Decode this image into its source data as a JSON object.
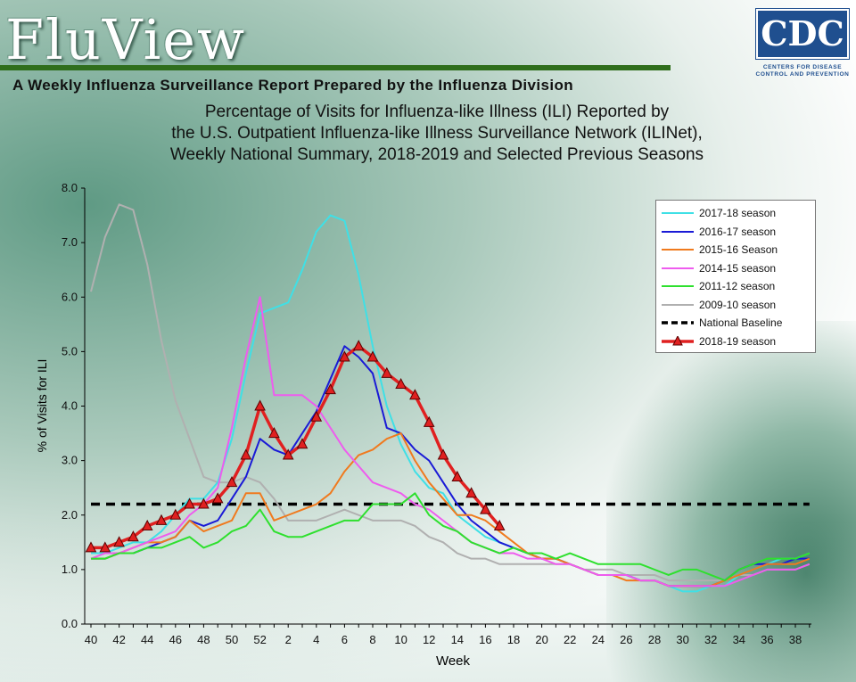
{
  "header": {
    "logo_text": "FluView",
    "subtitle": "A Weekly Influenza Surveillance Report Prepared by the Influenza Division",
    "cdc_text": "CDC",
    "cdc_subtext": "CENTERS FOR DISEASE CONTROL AND PREVENTION"
  },
  "colors": {
    "rule": "#2f6e1c",
    "cdc_blue": "#1f4f8f"
  },
  "chart_data": {
    "type": "line",
    "title_lines": [
      "Percentage of Visits for Influenza-like Illness (ILI) Reported by",
      "the U.S. Outpatient Influenza-like Illness Surveillance Network (ILINet),",
      "Weekly National Summary, 2018-2019 and Selected Previous Seasons"
    ],
    "xlabel": "Week",
    "ylabel": "% of Visits for ILI",
    "ylim": [
      0,
      8
    ],
    "yticks": [
      "0.0",
      "1.0",
      "2.0",
      "3.0",
      "4.0",
      "5.0",
      "6.0",
      "7.0",
      "8.0"
    ],
    "x_categories": [
      "40",
      "41",
      "42",
      "43",
      "44",
      "45",
      "46",
      "47",
      "48",
      "49",
      "50",
      "51",
      "52",
      "1",
      "2",
      "3",
      "4",
      "5",
      "6",
      "7",
      "8",
      "9",
      "10",
      "11",
      "12",
      "13",
      "14",
      "15",
      "16",
      "17",
      "18",
      "19",
      "20",
      "21",
      "22",
      "23",
      "24",
      "25",
      "26",
      "27",
      "28",
      "29",
      "30",
      "31",
      "32",
      "33",
      "34",
      "35",
      "36",
      "37",
      "38",
      "39"
    ],
    "x_tick_labels": [
      "40",
      "42",
      "44",
      "46",
      "48",
      "50",
      "52",
      "2",
      "4",
      "6",
      "8",
      "10",
      "12",
      "14",
      "16",
      "18",
      "20",
      "22",
      "24",
      "26",
      "28",
      "30",
      "32",
      "34",
      "36",
      "38"
    ],
    "baseline": {
      "name": "National Baseline",
      "value": 2.2,
      "color": "#000000"
    },
    "series": [
      {
        "name": "2017-18 season",
        "color": "#3fe0e6",
        "values": [
          1.3,
          1.3,
          1.4,
          1.5,
          1.5,
          1.7,
          2.0,
          2.3,
          2.3,
          2.6,
          3.4,
          4.6,
          5.7,
          5.8,
          5.9,
          6.5,
          7.2,
          7.5,
          7.4,
          6.4,
          5.1,
          4.0,
          3.3,
          2.8,
          2.5,
          2.4,
          2.0,
          1.8,
          1.6,
          1.5,
          1.4,
          1.3,
          1.2,
          1.2,
          1.1,
          1.0,
          0.9,
          0.9,
          0.9,
          0.8,
          0.8,
          0.7,
          0.6,
          0.6,
          0.7,
          0.7,
          0.9,
          1.0,
          1.1,
          1.2,
          1.2,
          1.3
        ]
      },
      {
        "name": "2016-17 season",
        "color": "#1a1ad6",
        "values": [
          1.2,
          1.2,
          1.3,
          1.3,
          1.4,
          1.5,
          1.6,
          1.9,
          1.8,
          1.9,
          2.3,
          2.7,
          3.4,
          3.2,
          3.1,
          3.5,
          3.9,
          4.5,
          5.1,
          4.9,
          4.6,
          3.6,
          3.5,
          3.2,
          3.0,
          2.6,
          2.2,
          1.9,
          1.7,
          1.5,
          1.4,
          1.3,
          1.2,
          1.2,
          1.1,
          1.0,
          0.9,
          0.9,
          0.9,
          0.8,
          0.8,
          0.7,
          0.7,
          0.7,
          0.7,
          0.8,
          1.0,
          1.1,
          1.1,
          1.1,
          1.2,
          1.2
        ]
      },
      {
        "name": "2015-16 Season",
        "color": "#f07a1e",
        "values": [
          1.2,
          1.2,
          1.3,
          1.4,
          1.5,
          1.5,
          1.6,
          1.9,
          1.7,
          1.8,
          1.9,
          2.4,
          2.4,
          1.9,
          2.0,
          2.1,
          2.2,
          2.4,
          2.8,
          3.1,
          3.2,
          3.4,
          3.5,
          3.0,
          2.6,
          2.3,
          2.0,
          2.0,
          1.9,
          1.7,
          1.5,
          1.3,
          1.2,
          1.2,
          1.1,
          1.0,
          0.9,
          0.9,
          0.8,
          0.8,
          0.8,
          0.7,
          0.7,
          0.7,
          0.7,
          0.8,
          0.9,
          1.0,
          1.1,
          1.1,
          1.1,
          1.2
        ]
      },
      {
        "name": "2014-15 season",
        "color": "#ee5cee",
        "values": [
          1.2,
          1.3,
          1.3,
          1.4,
          1.5,
          1.6,
          1.7,
          2.0,
          2.2,
          2.5,
          3.6,
          4.9,
          6.0,
          4.2,
          4.2,
          4.2,
          4.0,
          3.6,
          3.2,
          2.9,
          2.6,
          2.5,
          2.4,
          2.2,
          2.1,
          1.9,
          1.7,
          1.5,
          1.4,
          1.3,
          1.3,
          1.2,
          1.2,
          1.1,
          1.1,
          1.0,
          0.9,
          0.9,
          0.9,
          0.8,
          0.8,
          0.7,
          0.7,
          0.7,
          0.7,
          0.7,
          0.8,
          0.9,
          1.0,
          1.0,
          1.0,
          1.1
        ]
      },
      {
        "name": "2011-12 season",
        "color": "#2ee02e",
        "values": [
          1.2,
          1.2,
          1.3,
          1.3,
          1.4,
          1.4,
          1.5,
          1.6,
          1.4,
          1.5,
          1.7,
          1.8,
          2.1,
          1.7,
          1.6,
          1.6,
          1.7,
          1.8,
          1.9,
          1.9,
          2.2,
          2.2,
          2.2,
          2.4,
          2.0,
          1.8,
          1.7,
          1.5,
          1.4,
          1.3,
          1.4,
          1.3,
          1.3,
          1.2,
          1.3,
          1.2,
          1.1,
          1.1,
          1.1,
          1.1,
          1.0,
          0.9,
          1.0,
          1.0,
          0.9,
          0.8,
          1.0,
          1.1,
          1.2,
          1.2,
          1.2,
          1.3
        ]
      },
      {
        "name": "2009-10 season",
        "color": "#b0b0b0",
        "values": [
          6.1,
          7.1,
          7.7,
          7.6,
          6.6,
          5.2,
          4.1,
          3.4,
          2.7,
          2.6,
          2.6,
          2.7,
          2.6,
          2.3,
          1.9,
          1.9,
          1.9,
          2.0,
          2.1,
          2.0,
          1.9,
          1.9,
          1.9,
          1.8,
          1.6,
          1.5,
          1.3,
          1.2,
          1.2,
          1.1,
          1.1,
          1.1,
          1.1,
          1.1,
          1.1,
          1.0,
          1.0,
          1.0,
          0.9,
          0.9,
          0.9,
          0.8,
          0.8,
          0.8,
          0.8,
          0.8,
          0.9,
          0.9,
          1.0,
          1.0,
          1.0,
          1.1
        ]
      },
      {
        "name": "2018-19 season",
        "color": "#e02020",
        "values": [
          1.4,
          1.4,
          1.5,
          1.6,
          1.8,
          1.9,
          2.0,
          2.2,
          2.2,
          2.3,
          2.6,
          3.1,
          4.0,
          3.5,
          3.1,
          3.3,
          3.8,
          4.3,
          4.9,
          5.1,
          4.9,
          4.6,
          4.4,
          4.2,
          3.7,
          3.1,
          2.7,
          2.4,
          2.1,
          1.8
        ]
      }
    ]
  }
}
